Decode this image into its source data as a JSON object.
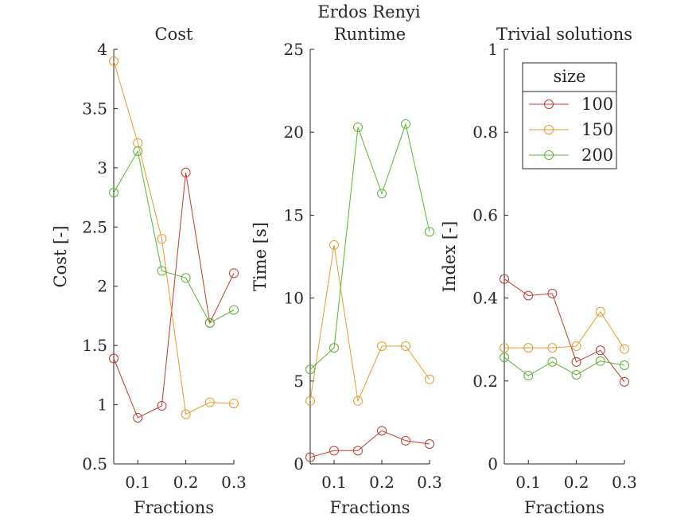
{
  "figure": {
    "suptitle": "Erdos Renyi"
  },
  "chart_data": [
    {
      "type": "line",
      "title": "Cost",
      "xlabel": "Fractions",
      "ylabel": "Cost [-]",
      "xlim": [
        0.05,
        0.3
      ],
      "ylim": [
        0.5,
        4
      ],
      "xticks": [
        0.1,
        0.2,
        0.3
      ],
      "xtick_labels": [
        "0.1",
        "0.2",
        "0.3"
      ],
      "yticks": [
        0.5,
        1,
        1.5,
        2,
        2.5,
        3,
        3.5,
        4
      ],
      "ytick_labels": [
        "0.5",
        "1",
        "1.5",
        "2",
        "2.5",
        "3",
        "3.5",
        "4"
      ],
      "grid": false,
      "x": [
        0.05,
        0.1,
        0.15,
        0.2,
        0.25,
        0.3
      ],
      "series": [
        {
          "name": "100",
          "color": "#c0392b",
          "values": [
            1.39,
            0.89,
            0.99,
            2.96,
            1.69,
            2.11
          ]
        },
        {
          "name": "150",
          "color": "#e69b2a",
          "values": [
            3.9,
            3.21,
            2.4,
            0.92,
            1.02,
            1.01
          ]
        },
        {
          "name": "200",
          "color": "#5cb335",
          "values": [
            2.79,
            3.14,
            2.13,
            2.07,
            1.69,
            1.8
          ]
        }
      ]
    },
    {
      "type": "line",
      "title": "Runtime",
      "xlabel": "Fractions",
      "ylabel": "Time [s]",
      "xlim": [
        0.05,
        0.3
      ],
      "ylim": [
        0,
        25
      ],
      "xticks": [
        0.1,
        0.2,
        0.3
      ],
      "xtick_labels": [
        "0.1",
        "0.2",
        "0.3"
      ],
      "yticks": [
        0,
        5,
        10,
        15,
        20,
        25
      ],
      "ytick_labels": [
        "0",
        "5",
        "10",
        "15",
        "20",
        "25"
      ],
      "grid": false,
      "x": [
        0.05,
        0.1,
        0.15,
        0.2,
        0.25,
        0.3
      ],
      "series": [
        {
          "name": "100",
          "color": "#c0392b",
          "values": [
            0.4,
            0.8,
            0.8,
            2.0,
            1.4,
            1.2
          ]
        },
        {
          "name": "150",
          "color": "#e69b2a",
          "values": [
            3.8,
            13.2,
            3.8,
            7.1,
            7.1,
            5.1
          ]
        },
        {
          "name": "200",
          "color": "#5cb335",
          "values": [
            5.7,
            7.0,
            20.3,
            16.3,
            20.5,
            14.0
          ]
        }
      ]
    },
    {
      "type": "line",
      "title": "Trivial solutions",
      "xlabel": "Fractions",
      "ylabel": "Index [-]",
      "xlim": [
        0.05,
        0.3
      ],
      "ylim": [
        0,
        1
      ],
      "xticks": [
        0.1,
        0.2,
        0.3
      ],
      "xtick_labels": [
        "0.1",
        "0.2",
        "0.3"
      ],
      "yticks": [
        0,
        0.2,
        0.4,
        0.6,
        0.8,
        1
      ],
      "ytick_labels": [
        "0",
        "0.2",
        "0.4",
        "0.6",
        "0.8",
        "1"
      ],
      "grid": false,
      "legend": {
        "title": "size",
        "position": "top-right",
        "entries": [
          "100",
          "150",
          "200"
        ]
      },
      "x": [
        0.05,
        0.1,
        0.15,
        0.2,
        0.25,
        0.3
      ],
      "series": [
        {
          "name": "100",
          "color": "#c0392b",
          "values": [
            0.446,
            0.406,
            0.411,
            0.246,
            0.274,
            0.198
          ]
        },
        {
          "name": "150",
          "color": "#e69b2a",
          "values": [
            0.28,
            0.28,
            0.28,
            0.284,
            0.367,
            0.277
          ]
        },
        {
          "name": "200",
          "color": "#5cb335",
          "values": [
            0.257,
            0.213,
            0.246,
            0.215,
            0.248,
            0.238
          ]
        }
      ]
    }
  ]
}
